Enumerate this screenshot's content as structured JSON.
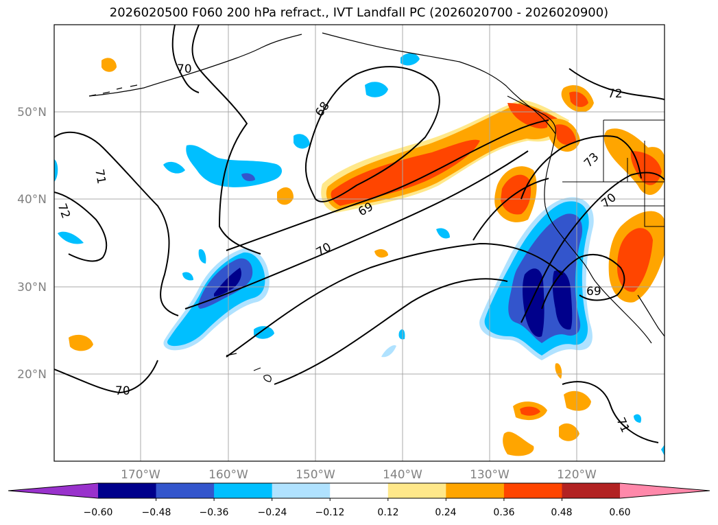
{
  "title": "2026020500 F060 200 hPa refract., IVT Landfall PC (2026020700 - 2026020900)",
  "latitude_labels": [
    "50°N",
    "40°N",
    "30°N",
    "20°N"
  ],
  "longitude_labels": [
    "170°W",
    "160°W",
    "150°W",
    "140°W",
    "130°W",
    "120°W"
  ],
  "colorbar": {
    "ticks": [
      "−0.60",
      "−0.48",
      "−0.36",
      "−0.24",
      "−0.12",
      "0.12",
      "0.24",
      "0.36",
      "0.48",
      "0.60"
    ],
    "colors": [
      "#9932CC",
      "#00008B",
      "#3355CC",
      "#00BFFF",
      "#B0E2FF",
      "#FFFFFF",
      "#FFE88A",
      "#FFA500",
      "#FF4500",
      "#B22222",
      "#FF88AA"
    ]
  },
  "contour_labels": [
    "70",
    "68",
    "71",
    "72",
    "69",
    "70",
    "73",
    "70",
    "69",
    "70",
    "71",
    "72"
  ],
  "colors": {
    "grid": "#a9a9a9",
    "coast": "#000000",
    "contour": "#000000"
  }
}
